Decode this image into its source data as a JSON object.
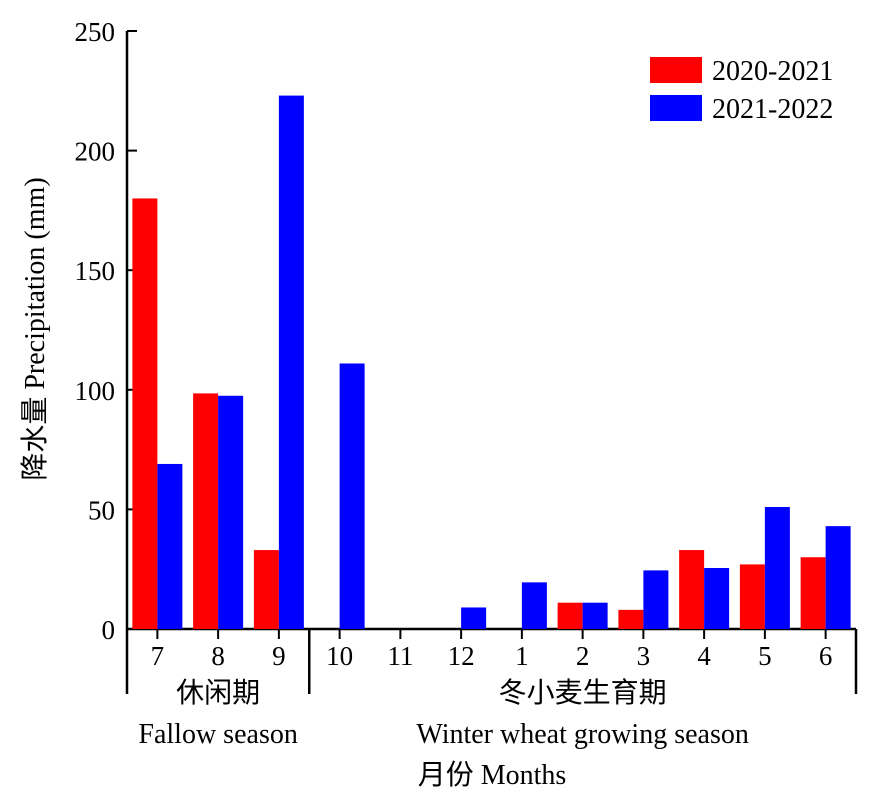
{
  "chart_data": {
    "type": "bar",
    "ylabel": "降水量 Precipitation (mm)",
    "xlabel": "月份 Months",
    "ylim": [
      0,
      250
    ],
    "yticks": [
      0,
      50,
      100,
      150,
      200,
      250
    ],
    "grid": false,
    "legend_position": "top-right",
    "categories": [
      "7",
      "8",
      "9",
      "10",
      "11",
      "12",
      "1",
      "2",
      "3",
      "4",
      "5",
      "6"
    ],
    "series": [
      {
        "name": "2020-2021",
        "color": "#ff0000",
        "values": [
          180,
          98.5,
          33,
          0,
          0,
          0,
          0,
          11,
          8,
          33,
          27,
          30
        ]
      },
      {
        "name": "2021-2022",
        "color": "#0000ff",
        "values": [
          69,
          97.5,
          223,
          111,
          0,
          9,
          19.5,
          11,
          24.5,
          25.5,
          51,
          43
        ]
      }
    ],
    "groups": [
      {
        "label_cn": "休闲期",
        "label_en": "Fallow season",
        "from": 0,
        "to": 2
      },
      {
        "label_cn": "冬小麦生育期",
        "label_en": "Winter wheat growing season",
        "from": 3,
        "to": 11
      }
    ]
  }
}
